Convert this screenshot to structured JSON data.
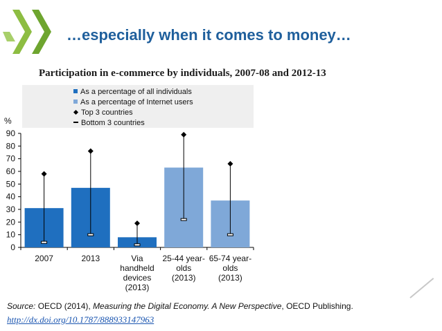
{
  "slide": {
    "title": "…especially when it comes to money…"
  },
  "source": {
    "prefix": "Source:",
    "text_before": "OECD (2014), ",
    "publication": "Measuring the Digital Economy. A New Perspective",
    "text_after": ", OECD Publishing.",
    "link": "http://dx.doi.org/10.1787/888933147963"
  },
  "colors": {
    "title": "#1f5f9c",
    "dark_blue": "#1f6fbf",
    "light_blue": "#7fa8d8",
    "logo_green": "#7fb23a",
    "legend_bg": "#efefef"
  },
  "chart_data": {
    "type": "bar",
    "title": "Participation in e-commerce by individuals, 2007-08 and 2012-13",
    "ylabel": "%",
    "ylim": [
      0,
      90
    ],
    "yticks": [
      "0",
      "10",
      "20",
      "30",
      "40",
      "50",
      "60",
      "70",
      "80",
      "90"
    ],
    "legend": [
      {
        "label": "As a percentage of all individuals",
        "marker": "square",
        "color": "#1f6fbf"
      },
      {
        "label": "As a percentage of Internet users",
        "marker": "square",
        "color": "#7fa8d8"
      },
      {
        "label": "Top 3 countries",
        "marker": "diamond",
        "color": "#000000"
      },
      {
        "label": "Bottom 3 countries",
        "marker": "dash",
        "color": "#000000"
      }
    ],
    "categories": [
      {
        "lines": [
          "2007"
        ]
      },
      {
        "lines": [
          "2013"
        ]
      },
      {
        "lines": [
          "Via",
          "handheld",
          "devices",
          "(2013)"
        ]
      },
      {
        "lines": [
          "25-44 year-",
          "olds",
          "(2013)"
        ]
      },
      {
        "lines": [
          "65-74 year-",
          "olds",
          "(2013)"
        ]
      }
    ],
    "series": [
      {
        "name": "As a percentage of all individuals",
        "color": "#1f6fbf",
        "values": [
          31,
          47,
          8,
          null,
          null
        ]
      },
      {
        "name": "As a percentage of Internet users",
        "color": "#7fa8d8",
        "values": [
          null,
          null,
          null,
          63,
          37
        ]
      }
    ],
    "top3": [
      58,
      76,
      19,
      89,
      66
    ],
    "bottom3": [
      4,
      10,
      2,
      22,
      10
    ]
  }
}
